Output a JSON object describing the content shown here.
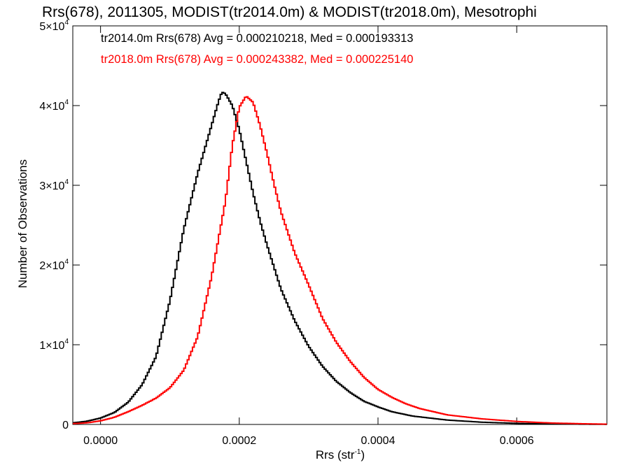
{
  "chart_data": {
    "type": "line",
    "title": "Rrs(678), 2011305, MODIST(tr2014.0m) & MODIST(tr2018.0m), Mesotrophi",
    "xlabel": "Rrs (str",
    "xlabel_sup": "-1",
    "xlabel_close": ")",
    "ylabel": "Number of Observations",
    "xlim": [
      -4e-05,
      0.00073
    ],
    "ylim": [
      0,
      50000
    ],
    "x_ticks": [
      {
        "value": 0.0,
        "label": "0.0000"
      },
      {
        "value": 0.0002,
        "label": "0.0002"
      },
      {
        "value": 0.0004,
        "label": "0.0004"
      },
      {
        "value": 0.0006,
        "label": "0.0006"
      }
    ],
    "y_ticks": [
      {
        "value": 0,
        "label": "0"
      },
      {
        "value": 10000,
        "label": "1×10",
        "sup": "4"
      },
      {
        "value": 20000,
        "label": "2×10",
        "sup": "4"
      },
      {
        "value": 30000,
        "label": "3×10",
        "sup": "4"
      },
      {
        "value": 40000,
        "label": "4×10",
        "sup": "4"
      },
      {
        "value": 50000,
        "label": "5×10",
        "sup": "4"
      }
    ],
    "legend": {
      "placement": "top-left",
      "entries": [
        {
          "text": "tr2014.0m Rrs(678) Avg = 0.000210218, Med = 0.000193313",
          "color": "#000000"
        },
        {
          "text": "tr2018.0m Rrs(678) Avg = 0.000243382, Med = 0.000225140",
          "color": "#ff0000"
        }
      ]
    },
    "series": [
      {
        "color": "#000000",
        "points": [
          [
            -4e-05,
            200
          ],
          [
            -2e-05,
            400
          ],
          [
            0.0,
            800
          ],
          [
            2e-05,
            1500
          ],
          [
            4e-05,
            2800
          ],
          [
            6e-05,
            5000
          ],
          [
            8e-05,
            8500
          ],
          [
            0.0001,
            15500
          ],
          [
            0.00012,
            24500
          ],
          [
            0.00014,
            31500
          ],
          [
            0.00016,
            37500
          ],
          [
            0.00017,
            40500
          ],
          [
            0.000175,
            41700
          ],
          [
            0.00018,
            41500
          ],
          [
            0.00019,
            40000
          ],
          [
            0.0002,
            37000
          ],
          [
            0.00021,
            33000
          ],
          [
            0.00022,
            29000
          ],
          [
            0.00023,
            25500
          ],
          [
            0.00024,
            22500
          ],
          [
            0.00026,
            17000
          ],
          [
            0.00028,
            13000
          ],
          [
            0.0003,
            9800
          ],
          [
            0.00032,
            7300
          ],
          [
            0.00034,
            5400
          ],
          [
            0.00036,
            4000
          ],
          [
            0.00038,
            2900
          ],
          [
            0.0004,
            2200
          ],
          [
            0.00042,
            1600
          ],
          [
            0.00045,
            1050
          ],
          [
            0.0005,
            550
          ],
          [
            0.00055,
            280
          ],
          [
            0.0006,
            140
          ],
          [
            0.00065,
            70
          ],
          [
            0.0007,
            30
          ],
          [
            0.00073,
            15
          ]
        ]
      },
      {
        "color": "#ff0000",
        "points": [
          [
            -4e-05,
            100
          ],
          [
            -2e-05,
            200
          ],
          [
            0.0,
            450
          ],
          [
            2e-05,
            900
          ],
          [
            4e-05,
            1600
          ],
          [
            6e-05,
            2400
          ],
          [
            8e-05,
            3300
          ],
          [
            0.0001,
            4600
          ],
          [
            0.00012,
            6800
          ],
          [
            0.00014,
            11000
          ],
          [
            0.00016,
            18500
          ],
          [
            0.00018,
            28000
          ],
          [
            0.00019,
            35000
          ],
          [
            0.0002,
            39800
          ],
          [
            0.00021,
            41200
          ],
          [
            0.00022,
            40400
          ],
          [
            0.00023,
            37500
          ],
          [
            0.00024,
            34000
          ],
          [
            0.00025,
            30200
          ],
          [
            0.00026,
            26700
          ],
          [
            0.00028,
            21500
          ],
          [
            0.0003,
            17500
          ],
          [
            0.00032,
            13300
          ],
          [
            0.00034,
            10300
          ],
          [
            0.00036,
            7900
          ],
          [
            0.00038,
            5900
          ],
          [
            0.0004,
            4400
          ],
          [
            0.00042,
            3400
          ],
          [
            0.00044,
            2600
          ],
          [
            0.00046,
            2000
          ],
          [
            0.0005,
            1200
          ],
          [
            0.00055,
            700
          ],
          [
            0.0006,
            380
          ],
          [
            0.00065,
            180
          ],
          [
            0.0007,
            80
          ],
          [
            0.00073,
            40
          ]
        ]
      }
    ]
  }
}
